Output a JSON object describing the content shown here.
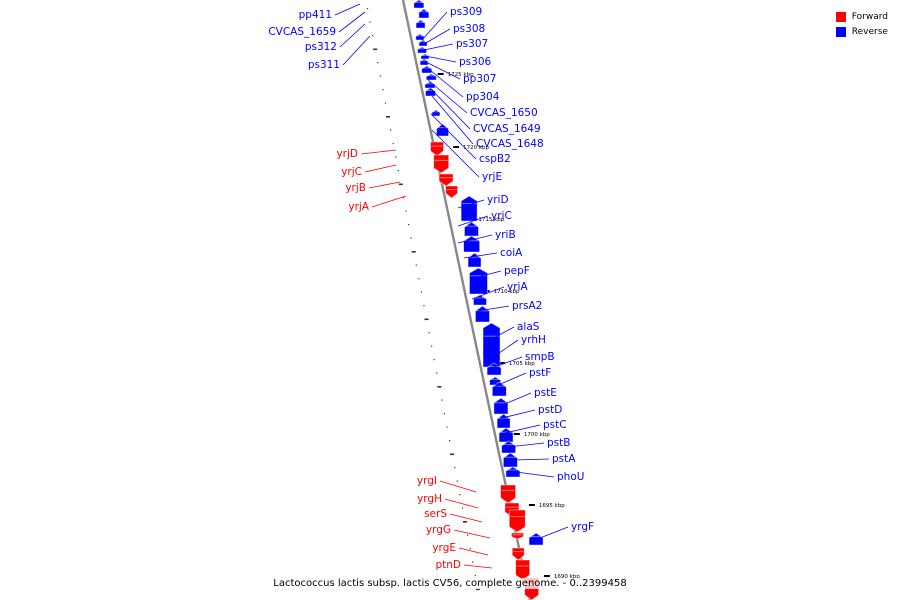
{
  "title": "Lactococcus lactis subsp. lactis CV56, complete genome. - 0..2399458",
  "colors": {
    "forward": "#ff0000",
    "reverse": "#0000ff",
    "backbone": "#888888"
  },
  "legend": [
    {
      "label": "Forward",
      "color": "#ff0000"
    },
    {
      "label": "Reverse",
      "color": "#0000ff"
    }
  ],
  "ticks": [
    "1725 kbp",
    "1720 kbp",
    "1715 kbp",
    "1710 kbp",
    "1705 kbp",
    "1700 kbp",
    "1695 kbp",
    "1690 kbp"
  ],
  "reverse_genes": [
    "pp411",
    "CVCAS_1659",
    "ps312",
    "ps311",
    "ps309",
    "ps308",
    "ps307",
    "ps306",
    "pp307",
    "pp304",
    "CVCAS_1650",
    "CVCAS_1649",
    "CVCAS_1648",
    "cspB2",
    "yrjE",
    "yriD",
    "yriC",
    "yriB",
    "coiA",
    "pepF",
    "yriA",
    "prsA2",
    "alaS",
    "yrhH",
    "smpB",
    "pstF",
    "pstE",
    "pstD",
    "pstC",
    "pstB",
    "pstA",
    "phoU",
    "yrgF"
  ],
  "forward_genes": [
    "yrjD",
    "yrjC",
    "yrjB",
    "yrjA",
    "yrgI",
    "yrgH",
    "serS",
    "yrgG",
    "yrgE",
    "ptnD"
  ]
}
